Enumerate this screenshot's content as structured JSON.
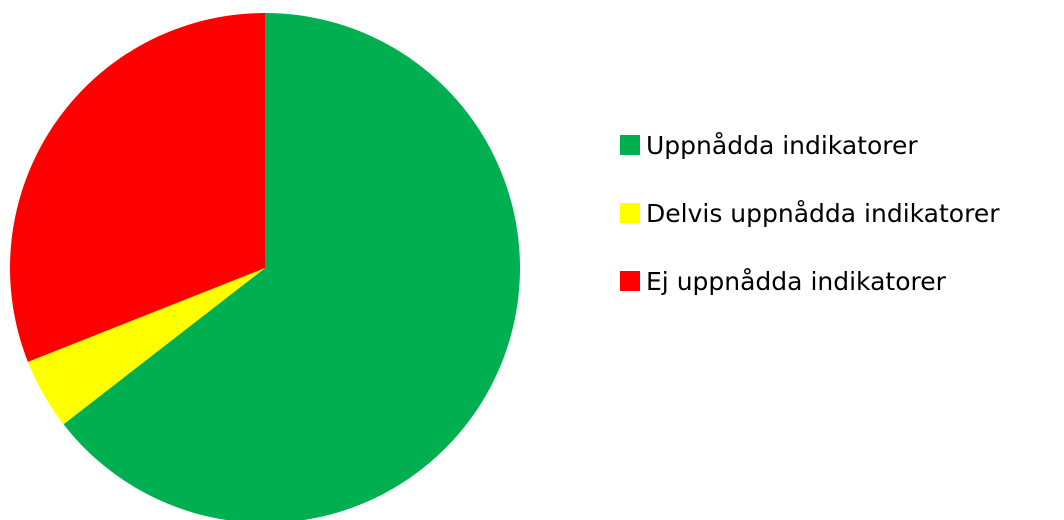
{
  "chart_data": {
    "type": "pie",
    "title": "",
    "slices": [
      {
        "label": "Uppnådda indikatorer",
        "value": 64.5,
        "color": "#00b050"
      },
      {
        "label": "Delvis uppnådda indikatorer",
        "value": 4.5,
        "color": "#ffff00"
      },
      {
        "label": "Ej uppnådda indikatorer",
        "value": 31.0,
        "color": "#ff0000"
      }
    ],
    "start": "12 o'clock",
    "direction": "clockwise",
    "legend": "right"
  }
}
